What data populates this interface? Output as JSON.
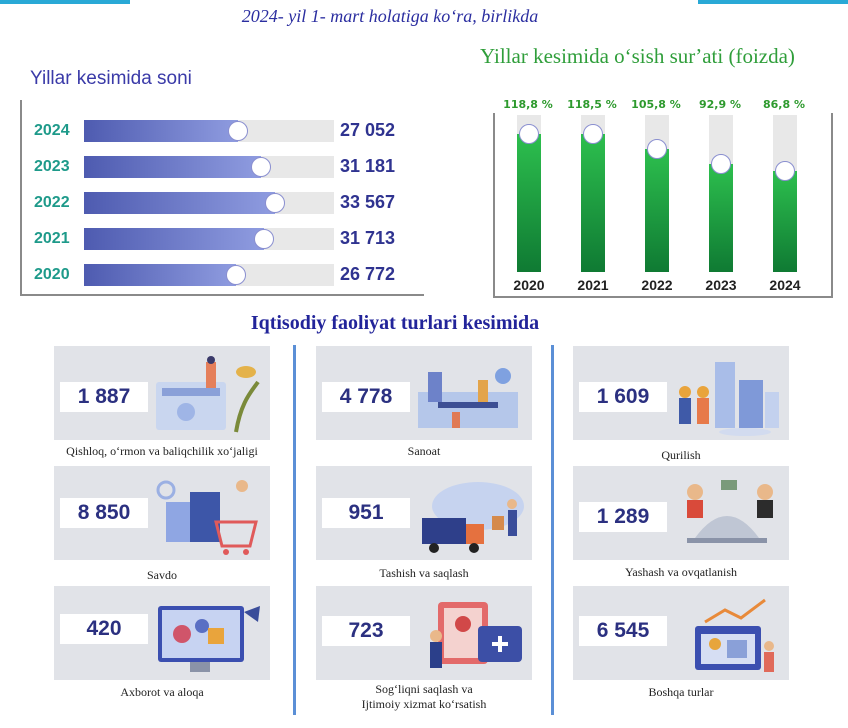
{
  "header": {
    "date_title": "2024- yil 1- mart holatiga koʻra, birlikda"
  },
  "left_chart": {
    "title": "Yillar kesimida soni"
  },
  "right_chart": {
    "title": "Yillar kesimida oʻsish surʼati (foizda)"
  },
  "section": {
    "title": "Iqtisodiy faoliyat turlari kesimida"
  },
  "chart_data": [
    {
      "type": "bar",
      "orientation": "horizontal",
      "title": "Yillar kesimida soni",
      "categories": [
        "2024",
        "2023",
        "2022",
        "2021",
        "2020"
      ],
      "values": [
        27052,
        31181,
        33567,
        31713,
        26772
      ],
      "value_labels": [
        "27 052",
        "31 181",
        "33 567",
        "31 713",
        "26 772"
      ],
      "accent_color": "#5b66c0"
    },
    {
      "type": "bar",
      "orientation": "vertical",
      "title": "Yillar kesimida oʻsish surʼati (foizda)",
      "categories": [
        "2020",
        "2021",
        "2022",
        "2023",
        "2024"
      ],
      "values": [
        118.8,
        118.5,
        105.8,
        92.9,
        86.8
      ],
      "value_labels": [
        "118,8 %",
        "118,5 %",
        "105,8 %",
        "92,9 %",
        "86,8 %"
      ],
      "accent_color": "#1f9e40"
    }
  ],
  "activities": [
    {
      "value": "1 887",
      "label": "Qishloq, oʻrmon va baliqchilik xoʻjaligi",
      "icon": "agriculture-icon"
    },
    {
      "value": "4 778",
      "label": "Sanoat",
      "icon": "factory-icon"
    },
    {
      "value": "1 609",
      "label": "Qurilish",
      "icon": "construction-icon"
    },
    {
      "value": "8 850",
      "label": "Savdo",
      "icon": "shopping-icon"
    },
    {
      "value": "951",
      "label": "Tashish va saqlash",
      "icon": "truck-icon"
    },
    {
      "value": "1 289",
      "label": "Yashash va ovqatlanish",
      "icon": "cloche-icon"
    },
    {
      "value": "420",
      "label": "Axborot va aloqa",
      "icon": "it-monitor-icon"
    },
    {
      "value": "723",
      "label": "Sogʻliqni saqlash va",
      "label2": "Ijtimoiy xizmat koʻrsatish",
      "icon": "health-card-icon"
    },
    {
      "value": "6 545",
      "label": "Boshqa turlar",
      "icon": "calendar-chart-icon"
    }
  ]
}
